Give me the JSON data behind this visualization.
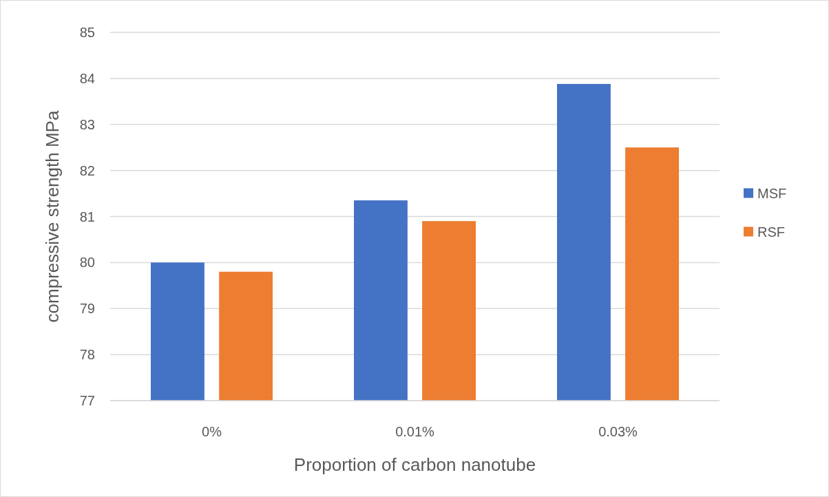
{
  "chart_data": {
    "type": "bar",
    "xlabel": "Proportion of carbon nanotube",
    "ylabel": "compressive strength MPa",
    "categories": [
      "0%",
      "0.01%",
      "0.03%"
    ],
    "series": [
      {
        "name": "MSF",
        "color": "#4472c4",
        "values": [
          80.0,
          81.35,
          83.88
        ]
      },
      {
        "name": "RSF",
        "color": "#ed7d31",
        "values": [
          79.8,
          80.9,
          82.5
        ]
      }
    ],
    "ylim": [
      77,
      85
    ],
    "yticks": [
      77,
      78,
      79,
      80,
      81,
      82,
      83,
      84,
      85
    ],
    "grid": "y",
    "legend": "right"
  }
}
